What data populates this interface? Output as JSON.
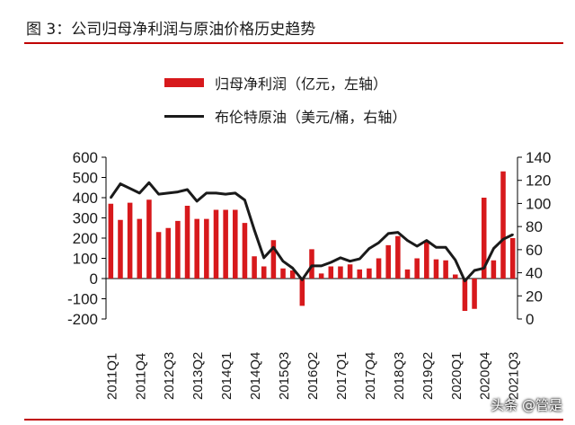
{
  "figure": {
    "title": "图 3：公司归母净利润与原油价格历史趋势",
    "watermark": "头条 @管是"
  },
  "colors": {
    "bar": "#d7191c",
    "line": "#1a1a1a",
    "accent_rule": "#c00000"
  },
  "chart_data": {
    "type": "bar",
    "title": "",
    "legend_position": "top",
    "grid": false,
    "categories": [
      "2011Q1",
      "2011Q2",
      "2011Q3",
      "2011Q4",
      "2012Q1",
      "2012Q2",
      "2012Q3",
      "2012Q4",
      "2013Q1",
      "2013Q2",
      "2013Q3",
      "2013Q4",
      "2014Q1",
      "2014Q2",
      "2014Q3",
      "2014Q4",
      "2015Q1",
      "2015Q2",
      "2015Q3",
      "2015Q4",
      "2016Q1",
      "2016Q2",
      "2016Q3",
      "2016Q4",
      "2017Q1",
      "2017Q2",
      "2017Q3",
      "2017Q4",
      "2018Q1",
      "2018Q2",
      "2018Q3",
      "2018Q4",
      "2019Q1",
      "2019Q2",
      "2019Q3",
      "2019Q4",
      "2020Q1",
      "2020Q2",
      "2020Q3",
      "2020Q4",
      "2021Q1",
      "2021Q2",
      "2021Q3"
    ],
    "x_tick_labels": [
      "2011Q1",
      "2011Q4",
      "2012Q3",
      "2013Q2",
      "2014Q1",
      "2014Q4",
      "2015Q3",
      "2016Q2",
      "2017Q1",
      "2017Q4",
      "2018Q3",
      "2019Q2",
      "2020Q1",
      "2020Q4",
      "2021Q3"
    ],
    "y_left": {
      "min": -200,
      "max": 600,
      "ticks": [
        "-200",
        "-100",
        "0",
        "100",
        "200",
        "300",
        "400",
        "500",
        "600"
      ]
    },
    "y_right": {
      "min": 0,
      "max": 140,
      "ticks": [
        "0",
        "20",
        "40",
        "60",
        "80",
        "100",
        "120",
        "140"
      ]
    },
    "series": [
      {
        "name": "归母净利润（亿元，左轴）",
        "type": "bar",
        "axis": "left",
        "values": [
          370,
          290,
          375,
          295,
          390,
          230,
          250,
          285,
          360,
          295,
          295,
          340,
          340,
          340,
          275,
          110,
          60,
          190,
          50,
          40,
          -135,
          145,
          25,
          60,
          60,
          70,
          45,
          50,
          100,
          165,
          210,
          45,
          100,
          180,
          95,
          90,
          20,
          -160,
          -150,
          400,
          90,
          530,
          200
        ]
      },
      {
        "name": "布伦特原油（美元/桶，右轴）",
        "type": "line",
        "axis": "right",
        "values": [
          105,
          117,
          113,
          109,
          118,
          108,
          109,
          110,
          112,
          102,
          109,
          109,
          108,
          109,
          103,
          77,
          53,
          62,
          50,
          44,
          34,
          46,
          46,
          49,
          53,
          50,
          52,
          61,
          66,
          74,
          75,
          68,
          63,
          68,
          62,
          62,
          51,
          33,
          42,
          44,
          61,
          69,
          73
        ]
      }
    ]
  }
}
